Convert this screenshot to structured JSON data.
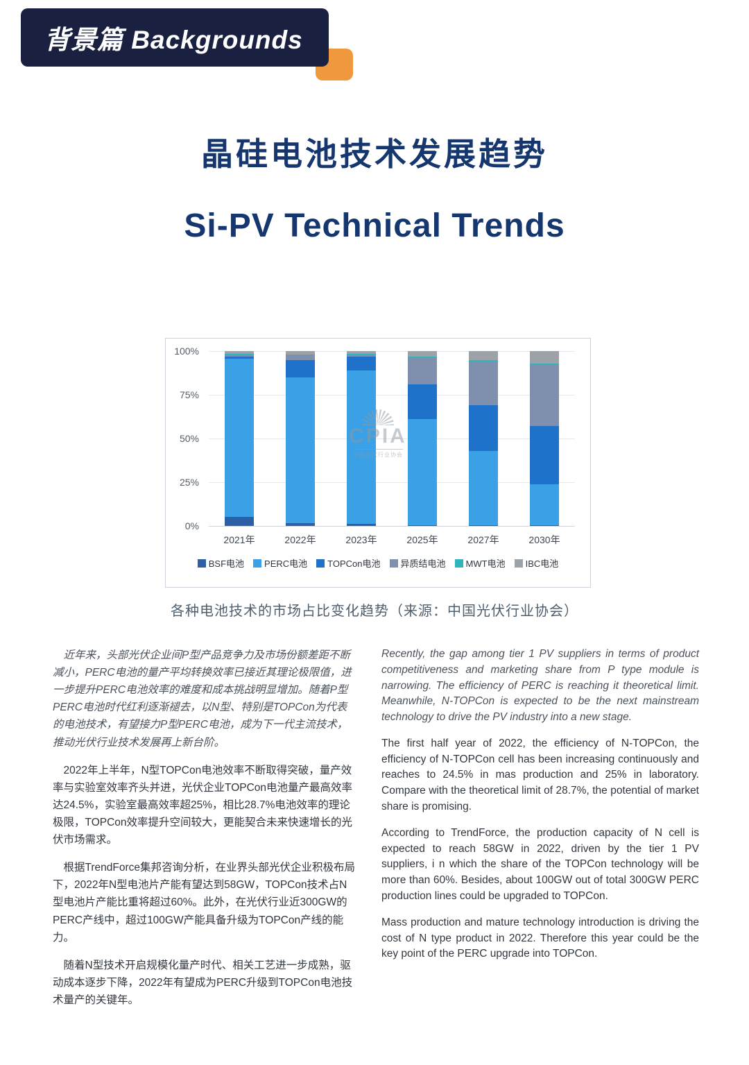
{
  "header": {
    "banner_label": "背景篇 Backgrounds"
  },
  "title": {
    "zh": "晶硅电池技术发展趋势",
    "en": "Si-PV Technical Trends"
  },
  "watermark": {
    "text": "CPIA",
    "subtext": "中国光伏行业协会"
  },
  "chart_caption": "各种电池技术的市场占比变化趋势（来源：中国光伏行业协会）",
  "chart_data": {
    "type": "bar",
    "stacked": true,
    "percent_stacked": true,
    "title": "",
    "xlabel": "",
    "ylabel": "",
    "ylim": [
      0,
      100
    ],
    "y_ticks": [
      "100%",
      "75%",
      "50%",
      "25%",
      "0%"
    ],
    "grid": true,
    "legend_position": "bottom",
    "categories": [
      "2021年",
      "2022年",
      "2023年",
      "2025年",
      "2027年",
      "2030年"
    ],
    "series": [
      {
        "name": "BSF电池",
        "color": "#2d5fa6",
        "values": [
          5,
          1.5,
          1,
          0.5,
          0.5,
          0.5
        ]
      },
      {
        "name": "PERC电池",
        "color": "#3ba1e6",
        "values": [
          90.5,
          83.5,
          88,
          60.5,
          42.5,
          23.5
        ]
      },
      {
        "name": "TOPCon电池",
        "color": "#1f72c9",
        "values": [
          1.5,
          10,
          8,
          20,
          26,
          33
        ]
      },
      {
        "name": "异质结电池",
        "color": "#7e90ad",
        "values": [
          1,
          2.5,
          1,
          15,
          25,
          35
        ]
      },
      {
        "name": "MWT电池",
        "color": "#2fb6ba",
        "values": [
          0.5,
          0.5,
          0.5,
          1,
          1,
          1
        ]
      },
      {
        "name": "IBC电池",
        "color": "#9da2a9",
        "values": [
          1.5,
          2,
          1.5,
          3,
          5,
          7
        ]
      }
    ]
  },
  "body": {
    "left": [
      {
        "italic": true,
        "text": "近年来，头部光伏企业间P型产品竞争力及市场份额差距不断减小，PERC电池的量产平均转换效率已接近其理论极限值，进一步提升PERC电池效率的难度和成本挑战明显增加。随着P型PERC电池时代红利逐渐褪去，以N型、特别是TOPCon为代表的电池技术，有望接力P型PERC电池，成为下一代主流技术，推动光伏行业技术发展再上新台阶。"
      },
      {
        "italic": false,
        "text": "2022年上半年，N型TOPCon电池效率不断取得突破，量产效率与实验室效率齐头并进，光伏企业TOPCon电池量产最高效率达24.5%，实验室最高效率超25%，相比28.7%电池效率的理论极限，TOPCon效率提升空间较大，更能契合未来快速增长的光伏市场需求。"
      },
      {
        "italic": false,
        "text": "根据TrendForce集邦咨询分析，在业界头部光伏企业积极布局下，2022年N型电池片产能有望达到58GW，TOPCon技术占N型电池片产能比重将超过60%。此外，在光伏行业近300GW的PERC产线中，超过100GW产能具备升级为TOPCon产线的能力。"
      },
      {
        "italic": false,
        "text": "随着N型技术开启规模化量产时代、相关工艺进一步成熟，驱动成本逐步下降，2022年有望成为PERC升级到TOPCon电池技术量产的关键年。"
      }
    ],
    "right": [
      {
        "italic": true,
        "text": "Recently, the gap among tier 1 PV suppliers in terms of product competitiveness and marketing share from P type module is narrowing. The efficiency of PERC is reaching it theoretical limit. Meanwhile, N-TOPCon is expected to be the next mainstream technology to drive the PV industry into a new stage."
      },
      {
        "italic": false,
        "text": "The first half year of 2022, the efficiency of N-TOPCon, the efficiency of N-TOPCon cell has been increasing continuously and reaches to 24.5% in mas production and 25% in laboratory. Compare with the theoretical limit of 28.7%, the potential of market share is promising."
      },
      {
        "italic": false,
        "text": "According to TrendForce, the production capacity of N cell is expected to reach 58GW in 2022, driven by the tier 1 PV suppliers, i n which the share of the TOPCon technology will be more than 60%. Besides, about 100GW out of total 300GW PERC production lines could be upgraded to TOPCon."
      },
      {
        "italic": false,
        "text": "Mass production and mature technology introduction is driving the cost of N type product in 2022. Therefore this year could be the key point of the PERC upgrade into TOPCon."
      }
    ]
  }
}
